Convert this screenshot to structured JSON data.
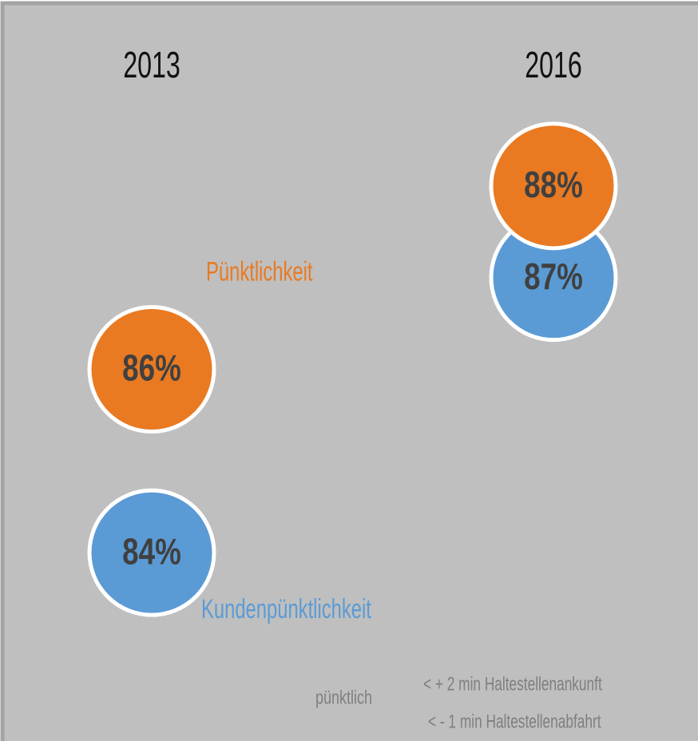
{
  "chart_data": {
    "type": "dot",
    "categories": [
      "2013",
      "2016"
    ],
    "series": [
      {
        "name": "Pünktlichkeit",
        "color": "#e97a22",
        "values": [
          86,
          88
        ],
        "value_labels": [
          "86%",
          "88%"
        ]
      },
      {
        "name": "Kundenpünktlichkeit",
        "color": "#5b9bd5",
        "values": [
          84,
          87
        ],
        "value_labels": [
          "84%",
          "87%"
        ]
      }
    ],
    "ylim": [
      83,
      89
    ],
    "annotations": [
      "pünktlich",
      "< + 2 min Haltestellenankunft",
      "<  - 1 min Haltestellenabfahrt"
    ]
  }
}
